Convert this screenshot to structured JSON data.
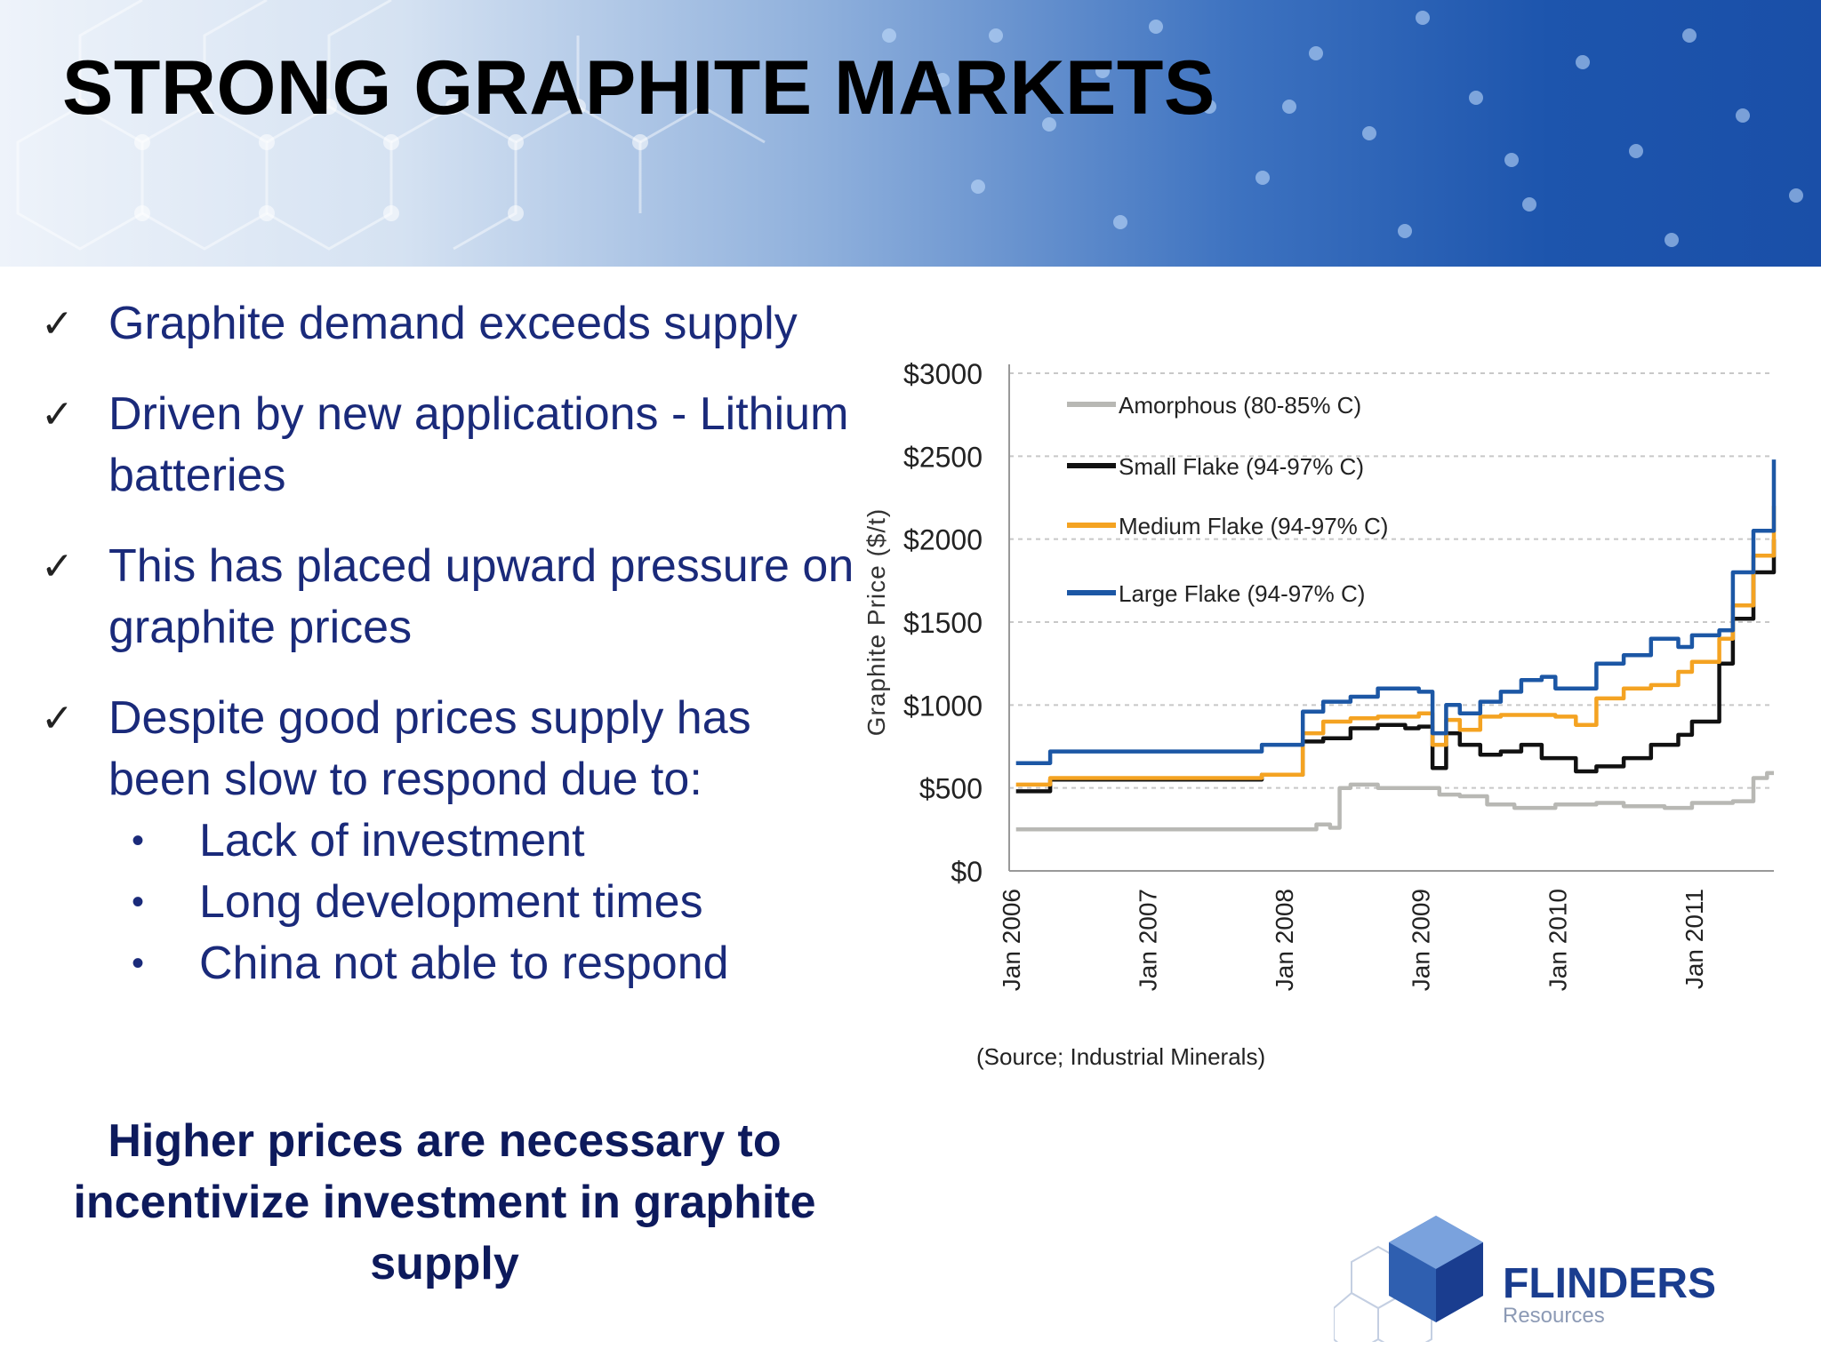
{
  "slide": {
    "title": "STRONG GRAPHITE MARKETS",
    "bullets": [
      {
        "text": "Graphite demand exceeds supply"
      },
      {
        "text": "Driven by new applications - Lithium batteries"
      },
      {
        "text": "This has placed upward pressure on graphite prices"
      },
      {
        "text": "Despite good prices supply has been slow to respond due to:",
        "sub": [
          "Lack of investment",
          "Long development times",
          "China not able to respond"
        ]
      }
    ],
    "conclusion": "Higher prices are necessary to incentivize investment in graphite supply",
    "check_icon": "check-icon",
    "colors": {
      "banner_dark": "#1a4fa8",
      "text": "#1a2a7a",
      "conclusion": "#0d1a5c"
    }
  },
  "logo": {
    "name": "FLINDERS",
    "sub": "Resources",
    "color": "#1a3d8f"
  },
  "chart_data": {
    "type": "line",
    "title": "",
    "xlabel": "",
    "ylabel": "Graphite Price ($/t)",
    "ylim": [
      0,
      3000
    ],
    "yticks": [
      0,
      500,
      1000,
      1500,
      2000,
      2500,
      3000
    ],
    "ytick_labels": [
      "$0",
      "$500",
      "$1000",
      "$1500",
      "$2000",
      "$2500",
      "$3000"
    ],
    "xlim": [
      2006.0,
      2011.6
    ],
    "xticks": [
      2006,
      2007,
      2008,
      2009,
      2010,
      2011
    ],
    "xtick_labels": [
      "Jan 2006",
      "Jan 2007",
      "Jan 2008",
      "Jan 2009",
      "Jan 2010",
      "Jan 2011"
    ],
    "grid": "horizontal dashed",
    "legend_placement": "top-left",
    "source": "(Source; Industrial Minerals)",
    "series": [
      {
        "name": "Amorphous (80-85% C)",
        "color": "#b8b8b4",
        "x": [
          2006.05,
          2006.5,
          2007.0,
          2007.5,
          2008.0,
          2008.15,
          2008.25,
          2008.35,
          2008.42,
          2008.5,
          2008.7,
          2009.0,
          2009.15,
          2009.3,
          2009.5,
          2009.7,
          2010.0,
          2010.3,
          2010.5,
          2010.8,
          2011.0,
          2011.3,
          2011.45,
          2011.55,
          2011.6
        ],
        "y": [
          250,
          250,
          250,
          250,
          250,
          250,
          280,
          260,
          500,
          520,
          500,
          500,
          460,
          450,
          400,
          380,
          400,
          410,
          390,
          380,
          410,
          420,
          560,
          590,
          590
        ]
      },
      {
        "name": "Small Flake (94-97% C)",
        "color": "#111111",
        "x": [
          2006.05,
          2006.3,
          2006.5,
          2007.0,
          2007.5,
          2007.85,
          2008.0,
          2008.15,
          2008.3,
          2008.5,
          2008.7,
          2008.9,
          2009.0,
          2009.1,
          2009.2,
          2009.3,
          2009.45,
          2009.6,
          2009.75,
          2009.9,
          2010.0,
          2010.15,
          2010.3,
          2010.5,
          2010.7,
          2010.9,
          2011.0,
          2011.2,
          2011.3,
          2011.45,
          2011.6
        ],
        "y": [
          480,
          550,
          550,
          550,
          550,
          580,
          580,
          780,
          800,
          860,
          880,
          860,
          870,
          620,
          830,
          760,
          700,
          720,
          760,
          680,
          680,
          600,
          630,
          680,
          760,
          820,
          900,
          1250,
          1520,
          1800,
          2000
        ]
      },
      {
        "name": "Medium Flake (94-97% C)",
        "color": "#f4a322",
        "x": [
          2006.05,
          2006.3,
          2006.5,
          2007.0,
          2007.5,
          2007.85,
          2008.0,
          2008.15,
          2008.3,
          2008.5,
          2008.7,
          2008.9,
          2009.0,
          2009.1,
          2009.2,
          2009.3,
          2009.45,
          2009.6,
          2009.75,
          2009.9,
          2010.0,
          2010.15,
          2010.3,
          2010.5,
          2010.7,
          2010.9,
          2011.0,
          2011.2,
          2011.3,
          2011.45,
          2011.6
        ],
        "y": [
          520,
          560,
          560,
          560,
          560,
          580,
          580,
          830,
          900,
          920,
          930,
          930,
          950,
          760,
          910,
          850,
          930,
          940,
          940,
          940,
          930,
          880,
          1040,
          1100,
          1120,
          1200,
          1260,
          1400,
          1600,
          1900,
          2200
        ]
      },
      {
        "name": "Large Flake (94-97% C)",
        "color": "#1c57a5",
        "x": [
          2006.05,
          2006.3,
          2006.5,
          2007.0,
          2007.5,
          2007.85,
          2008.0,
          2008.15,
          2008.3,
          2008.5,
          2008.7,
          2008.9,
          2009.0,
          2009.1,
          2009.2,
          2009.3,
          2009.45,
          2009.6,
          2009.75,
          2009.9,
          2010.0,
          2010.15,
          2010.3,
          2010.5,
          2010.7,
          2010.9,
          2011.0,
          2011.2,
          2011.3,
          2011.45,
          2011.6
        ],
        "y": [
          650,
          720,
          720,
          720,
          720,
          760,
          760,
          960,
          1020,
          1050,
          1100,
          1100,
          1080,
          830,
          1000,
          950,
          1020,
          1080,
          1150,
          1170,
          1100,
          1100,
          1250,
          1300,
          1400,
          1350,
          1420,
          1450,
          1800,
          2050,
          2480
        ]
      }
    ]
  }
}
